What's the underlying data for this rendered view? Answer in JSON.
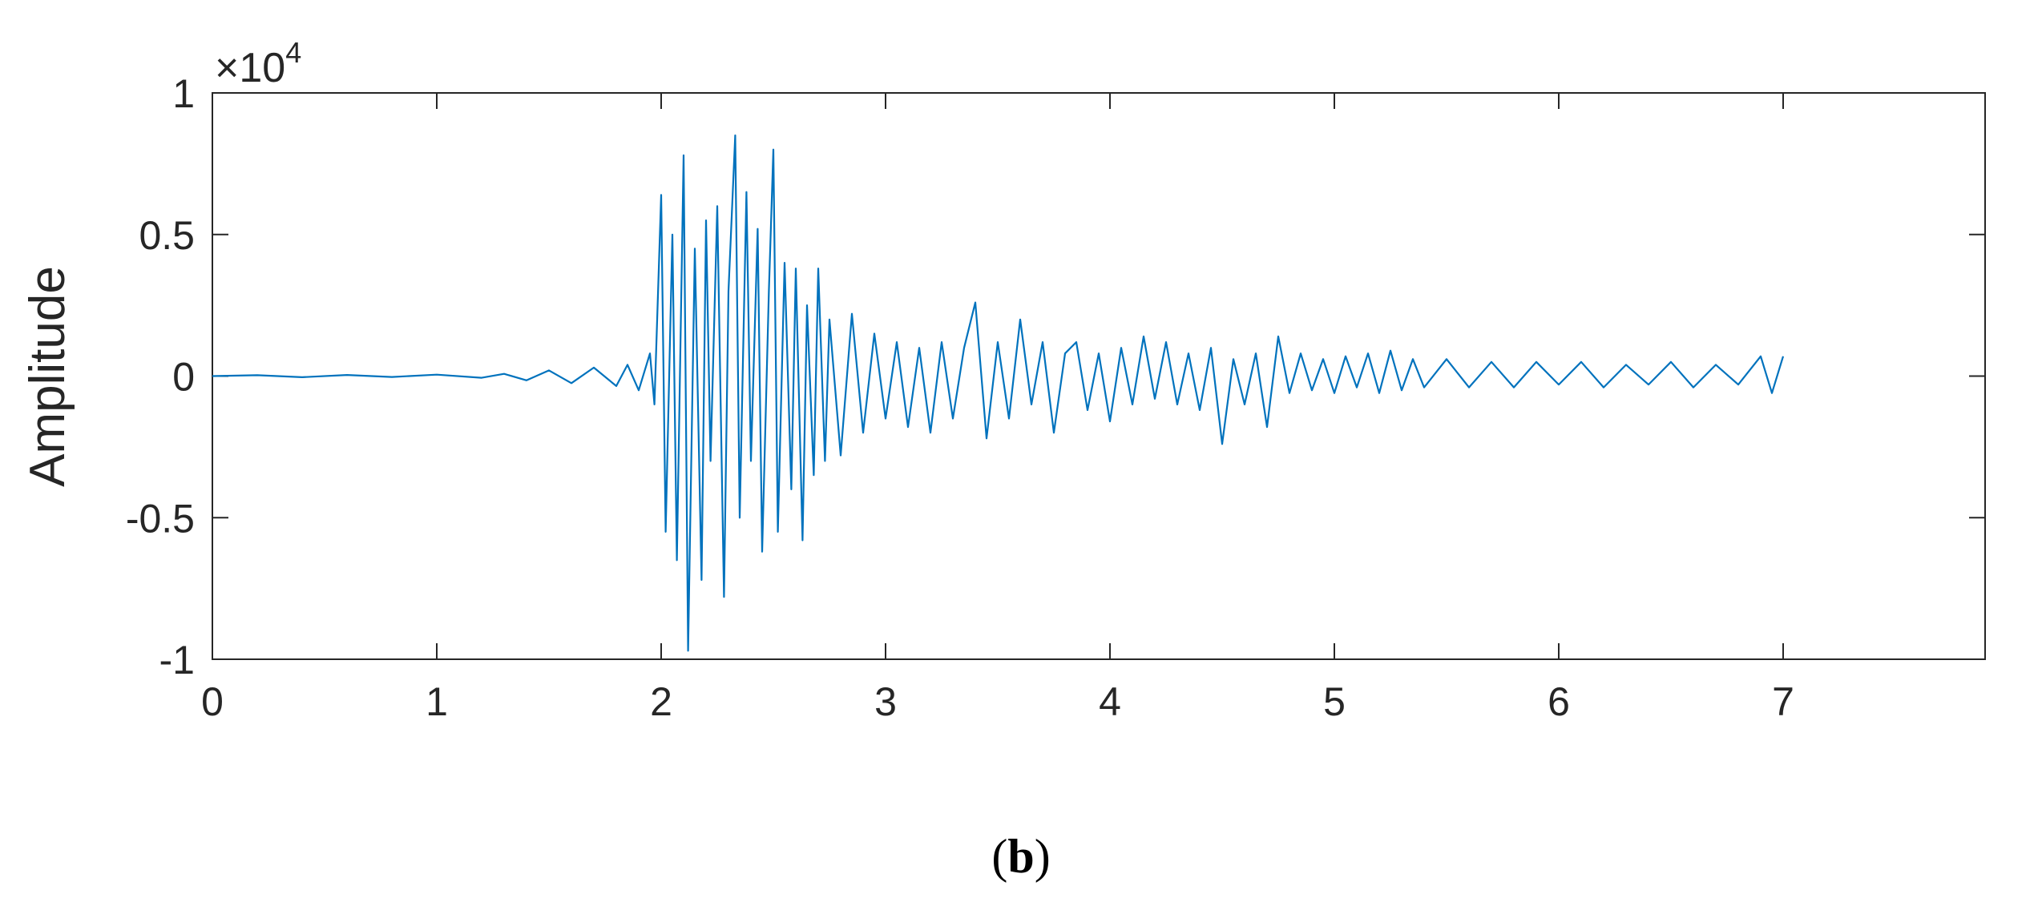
{
  "caption": {
    "open": "(",
    "letter": "b",
    "close": ")"
  },
  "chart_data": {
    "type": "line",
    "title": "",
    "xlabel": "",
    "ylabel": "Amplitude",
    "y_multiplier": "×10",
    "y_exponent": "4",
    "xlim": [
      0,
      7.9
    ],
    "ylim": [
      -1,
      1
    ],
    "x_ticks": [
      "0",
      "1",
      "2",
      "3",
      "4",
      "5",
      "6",
      "7"
    ],
    "y_ticks": [
      "-1",
      "-0.5",
      "0",
      "0.5",
      "1"
    ],
    "grid": false,
    "line_color": "#0072BD",
    "series": [
      {
        "x": [
          0,
          0.2,
          0.4,
          0.6,
          0.8,
          1.0,
          1.2,
          1.3,
          1.4,
          1.5,
          1.6,
          1.7,
          1.8,
          1.85,
          1.9,
          1.95,
          1.97,
          2.0,
          2.02,
          2.05,
          2.07,
          2.1,
          2.12,
          2.15,
          2.18,
          2.2,
          2.22,
          2.25,
          2.28,
          2.3,
          2.33,
          2.35,
          2.38,
          2.4,
          2.43,
          2.45,
          2.48,
          2.5,
          2.52,
          2.55,
          2.58,
          2.6,
          2.63,
          2.65,
          2.68,
          2.7,
          2.73,
          2.75,
          2.8,
          2.85,
          2.9,
          2.95,
          3.0,
          3.05,
          3.1,
          3.15,
          3.2,
          3.25,
          3.3,
          3.35,
          3.4,
          3.45,
          3.5,
          3.55,
          3.6,
          3.65,
          3.7,
          3.75,
          3.8,
          3.85,
          3.9,
          3.95,
          4.0,
          4.05,
          4.1,
          4.15,
          4.2,
          4.25,
          4.3,
          4.35,
          4.4,
          4.45,
          4.5,
          4.55,
          4.6,
          4.65,
          4.7,
          4.75,
          4.8,
          4.85,
          4.9,
          4.95,
          5.0,
          5.05,
          5.1,
          5.15,
          5.2,
          5.25,
          5.3,
          5.35,
          5.4,
          5.5,
          5.6,
          5.7,
          5.8,
          5.9,
          6.0,
          6.1,
          6.2,
          6.3,
          6.4,
          6.5,
          6.6,
          6.7,
          6.8,
          6.9,
          6.95,
          7.0
        ],
        "y": [
          0,
          0.003,
          -0.004,
          0.004,
          -0.003,
          0.005,
          -0.006,
          0.008,
          -0.015,
          0.02,
          -0.025,
          0.03,
          -0.035,
          0.04,
          -0.05,
          0.08,
          -0.1,
          0.64,
          -0.55,
          0.5,
          -0.65,
          0.78,
          -0.97,
          0.45,
          -0.72,
          0.55,
          -0.3,
          0.6,
          -0.78,
          0.3,
          0.85,
          -0.5,
          0.65,
          -0.3,
          0.52,
          -0.62,
          0.3,
          0.8,
          -0.55,
          0.4,
          -0.4,
          0.38,
          -0.58,
          0.25,
          -0.35,
          0.38,
          -0.3,
          0.2,
          -0.28,
          0.22,
          -0.2,
          0.15,
          -0.15,
          0.12,
          -0.18,
          0.1,
          -0.2,
          0.12,
          -0.15,
          0.1,
          0.26,
          -0.22,
          0.12,
          -0.15,
          0.2,
          -0.1,
          0.12,
          -0.2,
          0.08,
          0.12,
          -0.12,
          0.08,
          -0.16,
          0.1,
          -0.1,
          0.14,
          -0.08,
          0.12,
          -0.1,
          0.08,
          -0.12,
          0.1,
          -0.24,
          0.06,
          -0.1,
          0.08,
          -0.18,
          0.14,
          -0.06,
          0.08,
          -0.05,
          0.06,
          -0.06,
          0.07,
          -0.04,
          0.08,
          -0.06,
          0.09,
          -0.05,
          0.06,
          -0.04,
          0.06,
          -0.04,
          0.05,
          -0.04,
          0.05,
          -0.03,
          0.05,
          -0.04,
          0.04,
          -0.03,
          0.05,
          -0.04,
          0.04,
          -0.03,
          0.07,
          -0.06,
          0.07
        ]
      }
    ]
  }
}
